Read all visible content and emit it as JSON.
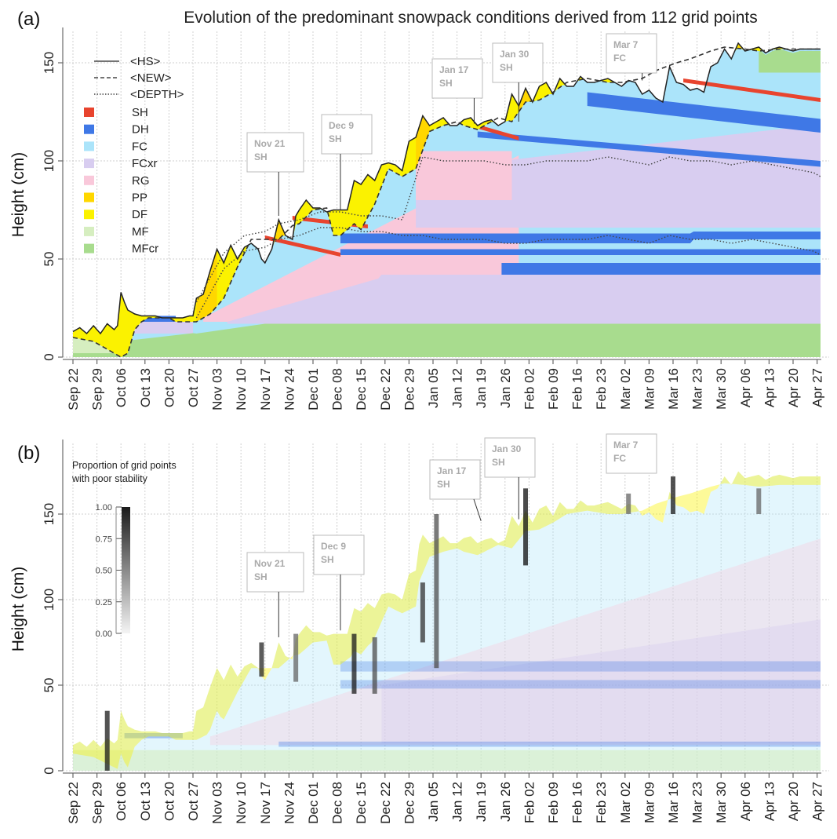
{
  "figure": {
    "title": "Evolution of the predominant snowpack conditions derived from 112 grid points"
  },
  "chart_data": [
    {
      "id": "a",
      "panel_label": "(a)",
      "type": "area",
      "title": "Evolution of the predominant snowpack conditions derived from 112 grid points",
      "xlabel": "",
      "ylabel": "Height (cm)",
      "ylim": [
        0,
        165
      ],
      "yticks": [
        0,
        50,
        100,
        150
      ],
      "grid": true,
      "x_unit": "days since Sep 22",
      "xticks": [
        "Sep 22",
        "Sep 29",
        "Oct 06",
        "Oct 13",
        "Oct 20",
        "Oct 27",
        "Nov 03",
        "Nov 10",
        "Nov 17",
        "Nov 24",
        "Dec 01",
        "Dec 08",
        "Dec 15",
        "Dec 22",
        "Dec 29",
        "Jan 05",
        "Jan 12",
        "Jan 19",
        "Jan 26",
        "Feb 02",
        "Feb 09",
        "Feb 16",
        "Feb 23",
        "Mar 02",
        "Mar 09",
        "Mar 16",
        "Mar 23",
        "Mar 30",
        "Apr 06",
        "Apr 13",
        "Apr 20",
        "Apr 27"
      ],
      "legend": {
        "placement": "top-left",
        "lines": [
          {
            "name": "<HS>",
            "style": "solid"
          },
          {
            "name": "<NEW>",
            "style": "dashed"
          },
          {
            "name": "<DEPTH>",
            "style": "dotted"
          }
        ],
        "grain_types": [
          {
            "name": "SH",
            "color": "#e8442e"
          },
          {
            "name": "DH",
            "color": "#3f78e6"
          },
          {
            "name": "FC",
            "color": "#abe4fa"
          },
          {
            "name": "FCxr",
            "color": "#d8cdf0"
          },
          {
            "name": "RG",
            "color": "#f9c8da"
          },
          {
            "name": "PP",
            "color": "#ffd700"
          },
          {
            "name": "DF",
            "color": "#fbf200"
          },
          {
            "name": "MF",
            "color": "#d6eec0"
          },
          {
            "name": "MFcr",
            "color": "#a8dc8e"
          }
        ]
      },
      "series": [
        {
          "name": "<HS>",
          "x": [
            0,
            2,
            4,
            6,
            8,
            10,
            12,
            13,
            14,
            15,
            16,
            18,
            20,
            22,
            24,
            26,
            28,
            30,
            32,
            34,
            35,
            36,
            38,
            40,
            42,
            44,
            46,
            48,
            50,
            52,
            54,
            55,
            56,
            58,
            60,
            62,
            64,
            65,
            66,
            68,
            70,
            72,
            74,
            76,
            78,
            80,
            82,
            84,
            86,
            88,
            90,
            92,
            94,
            96,
            98,
            100,
            102,
            104,
            106,
            108,
            110,
            112,
            114,
            116,
            118,
            120,
            122,
            124,
            126,
            128,
            130,
            132,
            134,
            136,
            138,
            140,
            142,
            144,
            146,
            148,
            150,
            152,
            154,
            156,
            158,
            160,
            162,
            164,
            166,
            168,
            170,
            172,
            174,
            176,
            178,
            180,
            182,
            184,
            186,
            188,
            190,
            192,
            194,
            196,
            198,
            200,
            202,
            204,
            206,
            208,
            210,
            212,
            214,
            216,
            218
          ],
          "values": [
            13,
            15,
            12,
            16,
            12,
            17,
            14,
            16,
            33,
            28,
            24,
            22,
            21,
            21,
            21,
            20,
            20,
            20,
            20,
            21,
            21,
            30,
            32,
            44,
            55,
            48,
            57,
            50,
            56,
            58,
            55,
            50,
            48,
            55,
            70,
            62,
            60,
            72,
            75,
            80,
            76,
            76,
            74,
            75,
            75,
            75,
            90,
            88,
            93,
            90,
            98,
            99,
            98,
            95,
            110,
            112,
            123,
            118,
            120,
            122,
            118,
            118,
            121,
            122,
            118,
            120,
            121,
            118,
            120,
            134,
            128,
            137,
            130,
            138,
            140,
            134,
            142,
            138,
            138,
            143,
            140,
            140,
            141,
            142,
            140,
            138,
            141,
            140,
            134,
            136,
            132,
            130,
            148,
            140,
            139,
            136,
            137,
            135,
            148,
            150,
            157,
            152,
            160,
            156,
            157,
            158,
            155,
            157,
            158,
            157,
            156,
            157,
            157,
            157,
            157
          ]
        },
        {
          "name": "<NEW>",
          "x": [
            0,
            6,
            10,
            12,
            14,
            16,
            18,
            20,
            22,
            24,
            26,
            28,
            30,
            34,
            36,
            40,
            44,
            48,
            52,
            56,
            60,
            64,
            66,
            70,
            74,
            76,
            78,
            82,
            84,
            88,
            92,
            96,
            100,
            104,
            108,
            112,
            114,
            116,
            118,
            120,
            124,
            128,
            132,
            136,
            140,
            144,
            150,
            156,
            160,
            166,
            170,
            176,
            180,
            186,
            190,
            196,
            200,
            206,
            212,
            218
          ],
          "values": [
            10,
            8,
            4,
            2,
            0,
            2,
            14,
            18,
            20,
            20,
            20,
            20,
            18,
            18,
            18,
            22,
            30,
            46,
            60,
            60,
            60,
            67,
            68,
            75,
            76,
            62,
            62,
            68,
            65,
            78,
            96,
            92,
            96,
            115,
            118,
            120,
            118,
            117,
            116,
            118,
            122,
            120,
            130,
            131,
            135,
            140,
            142,
            140,
            140,
            142,
            146,
            150,
            152,
            156,
            158,
            157,
            156,
            157,
            157,
            157
          ]
        },
        {
          "name": "<DEPTH>",
          "x": [
            36,
            44,
            50,
            56,
            60,
            66,
            72,
            78,
            84,
            90,
            96,
            102,
            108,
            114,
            120,
            126,
            132,
            138,
            144,
            150,
            156,
            162,
            168,
            174,
            180,
            186,
            192,
            198,
            204,
            210,
            216,
            218
          ],
          "values": [
            20,
            45,
            54,
            56,
            60,
            62,
            66,
            66,
            64,
            64,
            62,
            62,
            60,
            60,
            60,
            58,
            58,
            60,
            60,
            60,
            62,
            60,
            58,
            62,
            60,
            60,
            58,
            60,
            58,
            56,
            54,
            52
          ]
        }
      ],
      "annotations": [
        {
          "date": "Nov 21",
          "grain": "SH",
          "day": 60,
          "target_height": 72
        },
        {
          "date": "Dec 9",
          "grain": "SH",
          "day": 78,
          "target_height": 75
        },
        {
          "date": "Jan 17",
          "grain": "SH",
          "day": 117,
          "target_height": 119
        },
        {
          "date": "Jan 30",
          "grain": "SH",
          "day": 130,
          "target_height": 120
        },
        {
          "date": "Mar 7",
          "grain": "FC",
          "day": 166,
          "target_height": 141
        }
      ],
      "layers_approx": [
        {
          "grain": "MFcr",
          "x0": 0,
          "x1": 218,
          "bottom": 0,
          "top_start": 12,
          "top_end": 17
        },
        {
          "grain": "FCxr",
          "x0": 50,
          "x1": 218,
          "bottom": 17,
          "top_start": 18,
          "top_end": 42
        },
        {
          "grain": "DH",
          "x0": 125,
          "x1": 218,
          "bottom": 42,
          "top_start": 45,
          "top_end": 62
        },
        {
          "grain": "FC",
          "x0": 70,
          "x1": 218,
          "bottom": 60,
          "top_start": 70,
          "top_end": 65
        },
        {
          "grain": "RG",
          "x0": 40,
          "x1": 130,
          "bottom": 20,
          "top_start": 55,
          "top_end": 80
        },
        {
          "grain": "FCxr",
          "x0": 110,
          "x1": 218,
          "bottom": 65,
          "top_start": 100,
          "top_end": 118
        },
        {
          "grain": "FC",
          "x0": 130,
          "x1": 200,
          "bottom": 105,
          "top_start": 120,
          "top_end": 140
        },
        {
          "grain": "DF",
          "x0": 36,
          "x1": 218,
          "top_ref": "HS",
          "bottom_ref": "NEW"
        }
      ]
    },
    {
      "id": "b",
      "panel_label": "(b)",
      "type": "heatmap",
      "title": "",
      "xlabel": "",
      "ylabel": "Height (cm)",
      "ylim": [
        0,
        175
      ],
      "yticks": [
        0,
        50,
        100,
        150
      ],
      "grid": true,
      "xticks": [
        "Sep 22",
        "Sep 29",
        "Oct 06",
        "Oct 13",
        "Oct 20",
        "Oct 27",
        "Nov 03",
        "Nov 10",
        "Nov 17",
        "Nov 24",
        "Dec 01",
        "Dec 08",
        "Dec 15",
        "Dec 22",
        "Dec 29",
        "Jan 05",
        "Jan 12",
        "Jan 19",
        "Jan 26",
        "Feb 02",
        "Feb 09",
        "Feb 16",
        "Feb 23",
        "Mar 02",
        "Mar 09",
        "Mar 16",
        "Mar 23",
        "Mar 30",
        "Apr 06",
        "Apr 13",
        "Apr 20",
        "Apr 27"
      ],
      "colorbar": {
        "title_line1": "Proportion of grid points",
        "title_line2": "with poor stability",
        "ticks": [
          "1.00",
          "0.75",
          "0.50",
          "0.25",
          "0.00"
        ],
        "range": [
          0,
          1
        ],
        "placement": "top-left"
      },
      "annotations": [
        {
          "date": "Nov 21",
          "grain": "SH",
          "day": 60,
          "target_height": 78
        },
        {
          "date": "Dec 9",
          "grain": "SH",
          "day": 78,
          "target_height": 82
        },
        {
          "date": "Jan 17",
          "grain": "SH",
          "day": 119,
          "target_height": 146
        },
        {
          "date": "Jan 30",
          "grain": "SH",
          "day": 130,
          "target_height": 147
        },
        {
          "date": "Mar 7",
          "grain": "FC",
          "day": 166,
          "target_height": 175
        }
      ],
      "instability_hotspots": [
        {
          "day": 10,
          "h0": 0,
          "h1": 35,
          "value": 0.9
        },
        {
          "day": 55,
          "h0": 55,
          "h1": 75,
          "value": 0.85
        },
        {
          "day": 65,
          "h0": 52,
          "h1": 80,
          "value": 0.6
        },
        {
          "day": 82,
          "h0": 45,
          "h1": 80,
          "value": 0.9
        },
        {
          "day": 88,
          "h0": 45,
          "h1": 78,
          "value": 0.7
        },
        {
          "day": 102,
          "h0": 75,
          "h1": 110,
          "value": 0.8
        },
        {
          "day": 106,
          "h0": 60,
          "h1": 150,
          "value": 0.7
        },
        {
          "day": 132,
          "h0": 120,
          "h1": 165,
          "value": 0.95
        },
        {
          "day": 162,
          "h0": 150,
          "h1": 162,
          "value": 0.6
        },
        {
          "day": 175,
          "h0": 150,
          "h1": 172,
          "value": 0.9
        },
        {
          "day": 200,
          "h0": 150,
          "h1": 165,
          "value": 0.6
        }
      ]
    }
  ]
}
